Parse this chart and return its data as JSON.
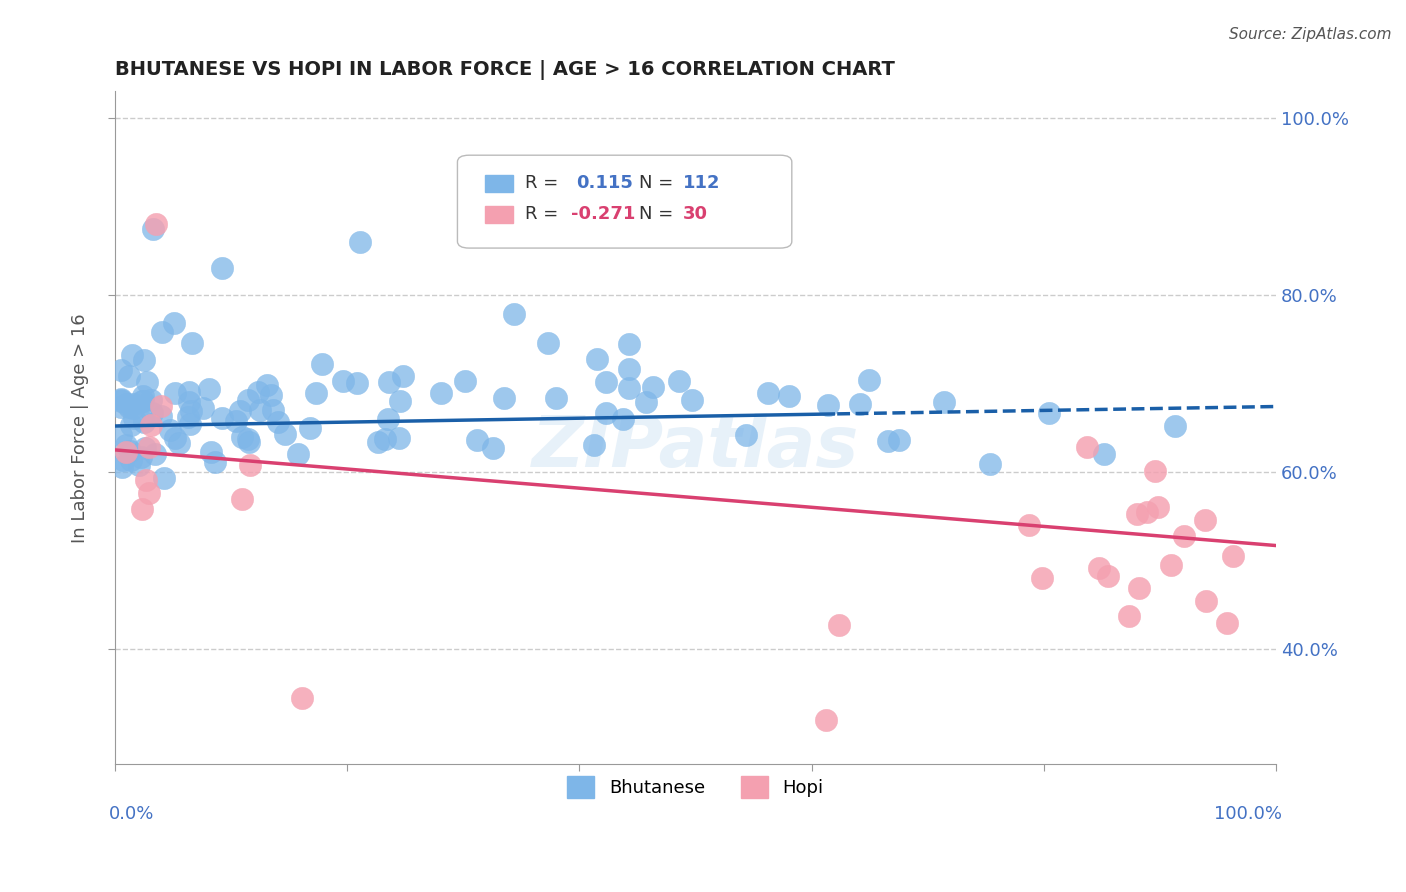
{
  "title": "BHUTANESE VS HOPI IN LABOR FORCE | AGE > 16 CORRELATION CHART",
  "source": "Source: ZipAtlas.com",
  "ylabel": "In Labor Force | Age > 16",
  "xlim": [
    0.0,
    1.0
  ],
  "ylim": [
    0.27,
    1.03
  ],
  "bhutanese_color": "#7EB6E8",
  "hopi_color": "#F4A0B0",
  "bhutanese_line_color": "#1A5FA8",
  "hopi_line_color": "#D94070",
  "watermark": "ZIPatlas",
  "bhutanese_R": 0.115,
  "hopi_R": -0.271,
  "bhutanese_N": 112,
  "hopi_N": 30,
  "grid_color": "#CCCCCC",
  "background_color": "#FFFFFF",
  "right_tick_color": "#4472C4",
  "bottom_tick_color": "#4472C4",
  "source_color": "#555555",
  "ylabel_color": "#555555"
}
